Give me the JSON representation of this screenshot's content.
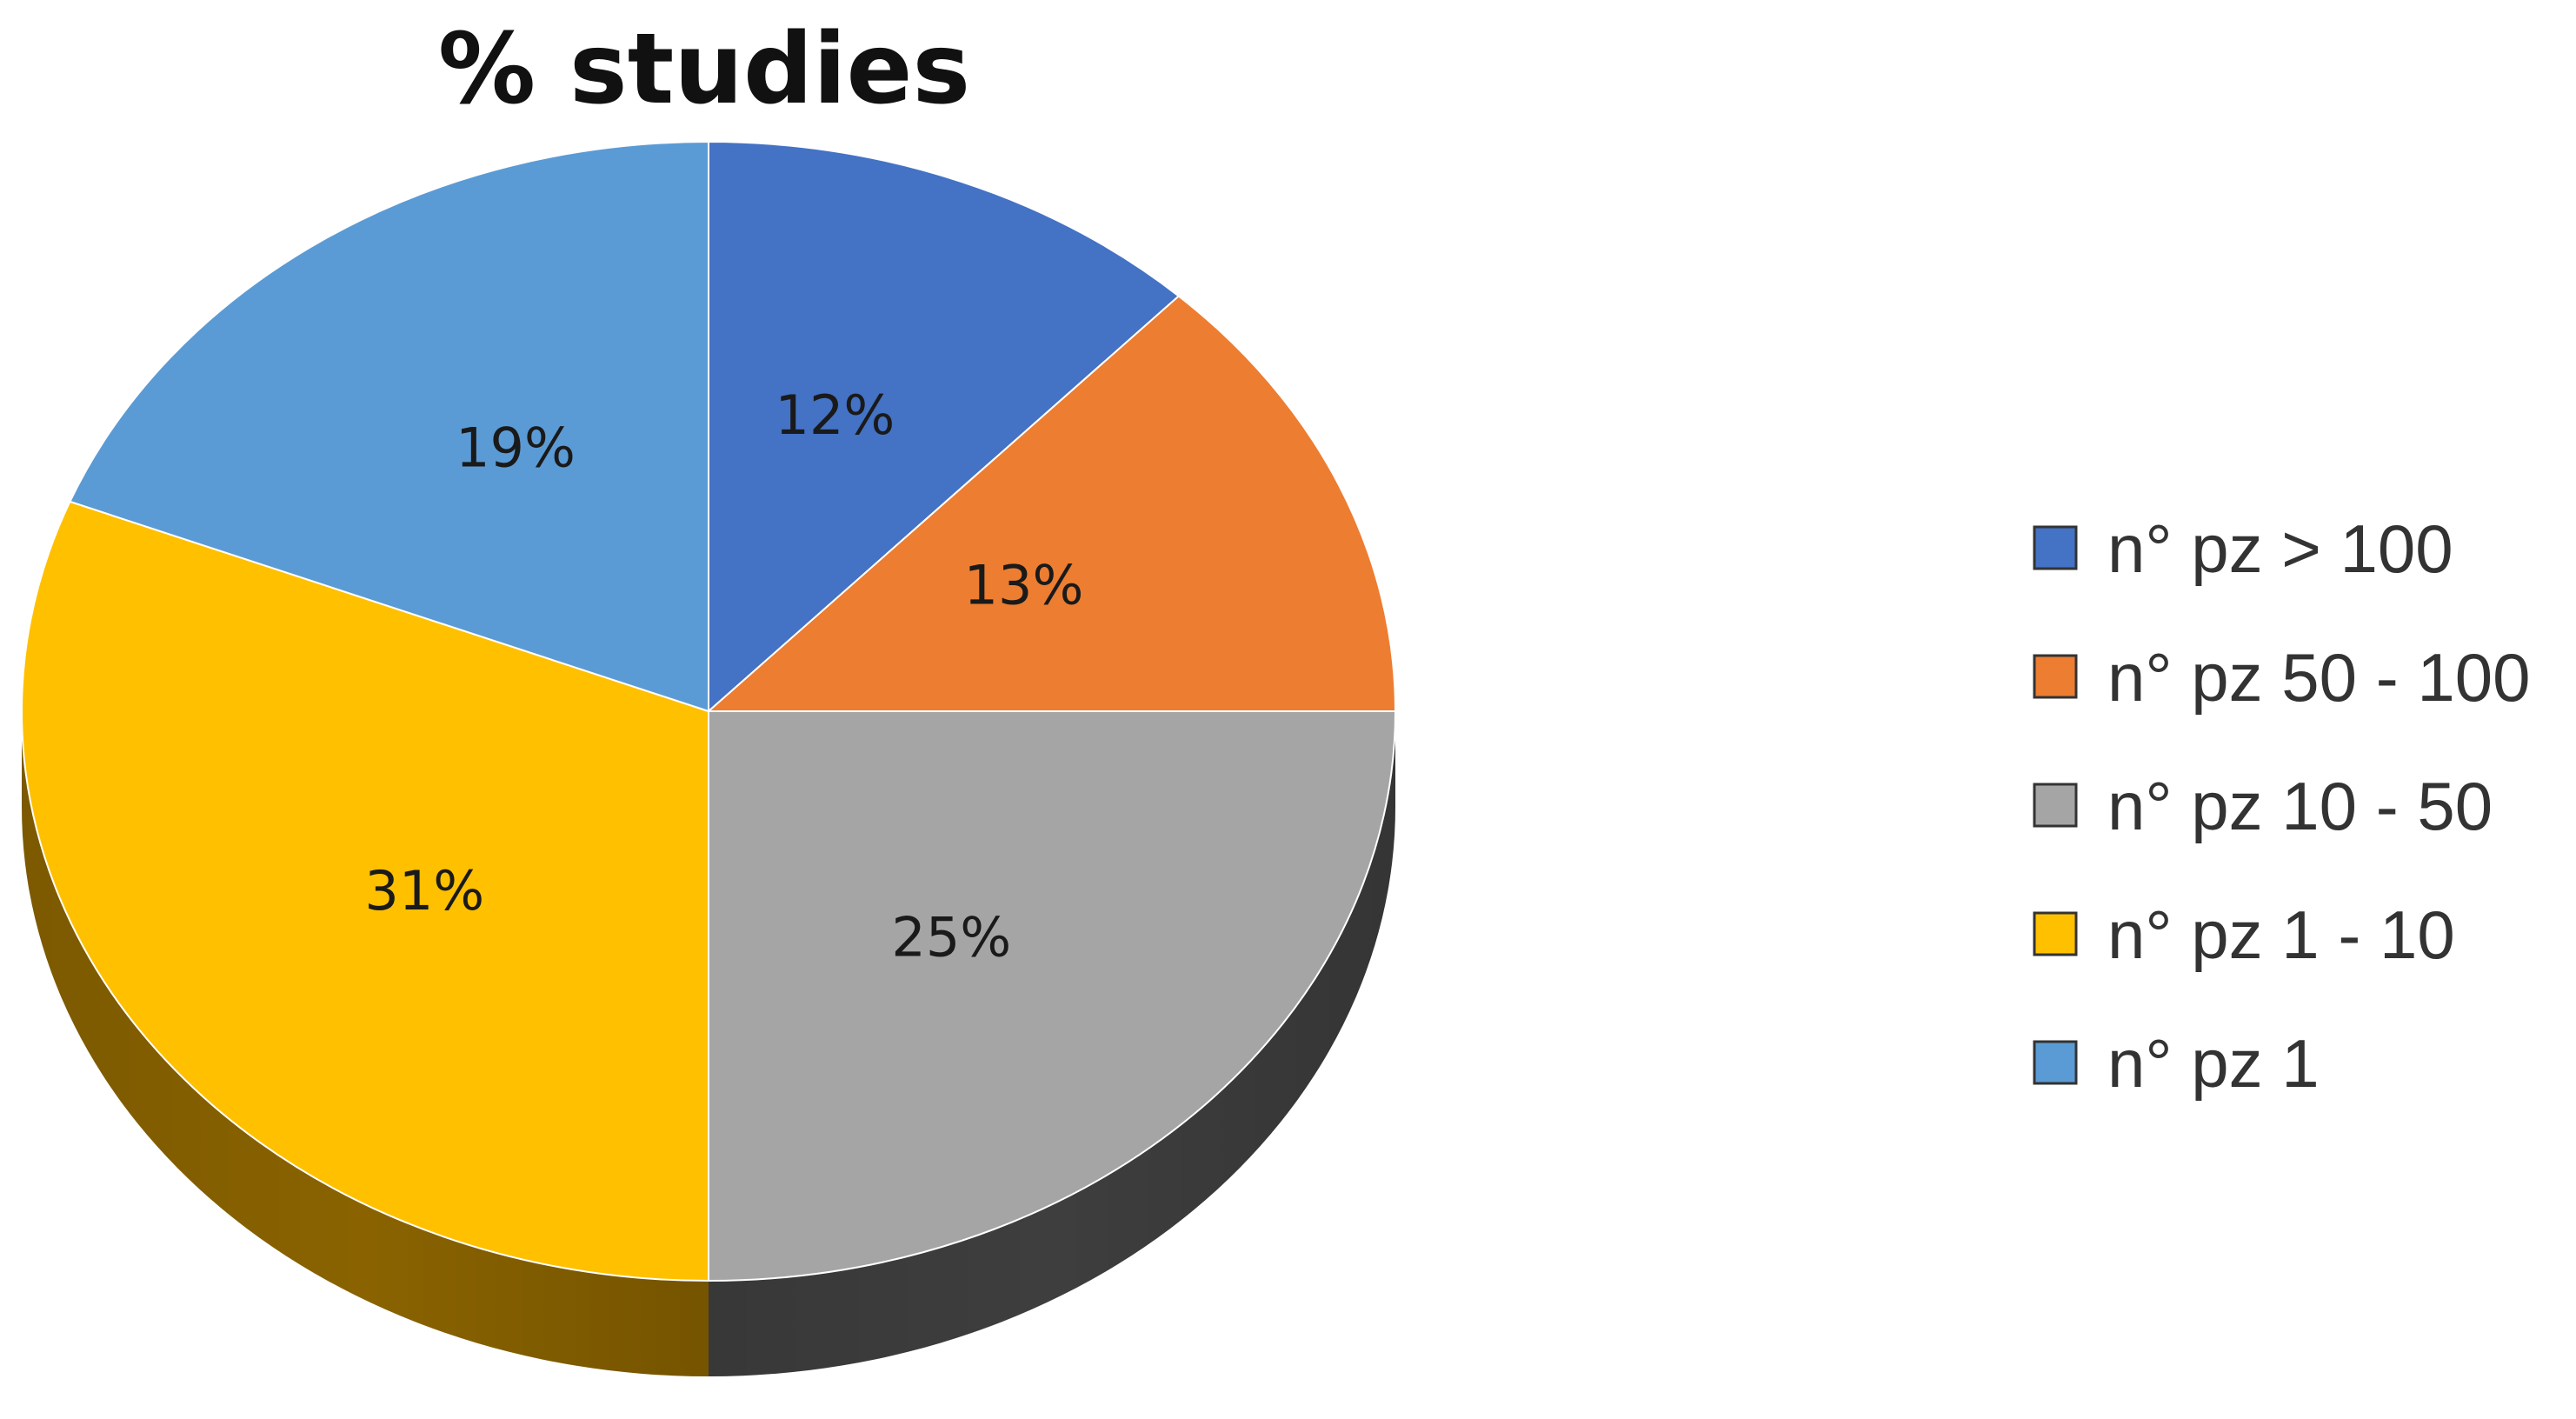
{
  "chart_data": {
    "type": "pie",
    "title": "% studies",
    "legend_position": "right",
    "slices": [
      {
        "label": "n° pz > 100",
        "value": 12,
        "display": "12%",
        "color": "#4472c4",
        "side_color": "#2a4a85"
      },
      {
        "label": "n° pz 50 - 100",
        "value": 13,
        "display": "13%",
        "color": "#ed7d31",
        "side_color": "#a5531c"
      },
      {
        "label": "n° pz 10 - 50",
        "value": 25,
        "display": "25%",
        "color": "#a5a5a5",
        "side_color": "#3e3e3e"
      },
      {
        "label": "n° pz 1 - 10",
        "value": 31,
        "display": "31%",
        "color": "#ffc000",
        "side_color": "#8a6300"
      },
      {
        "label": "n° pz 1",
        "value": 19,
        "display": "19%",
        "color": "#5b9bd5",
        "side_color": "#2f5f8a"
      }
    ]
  }
}
